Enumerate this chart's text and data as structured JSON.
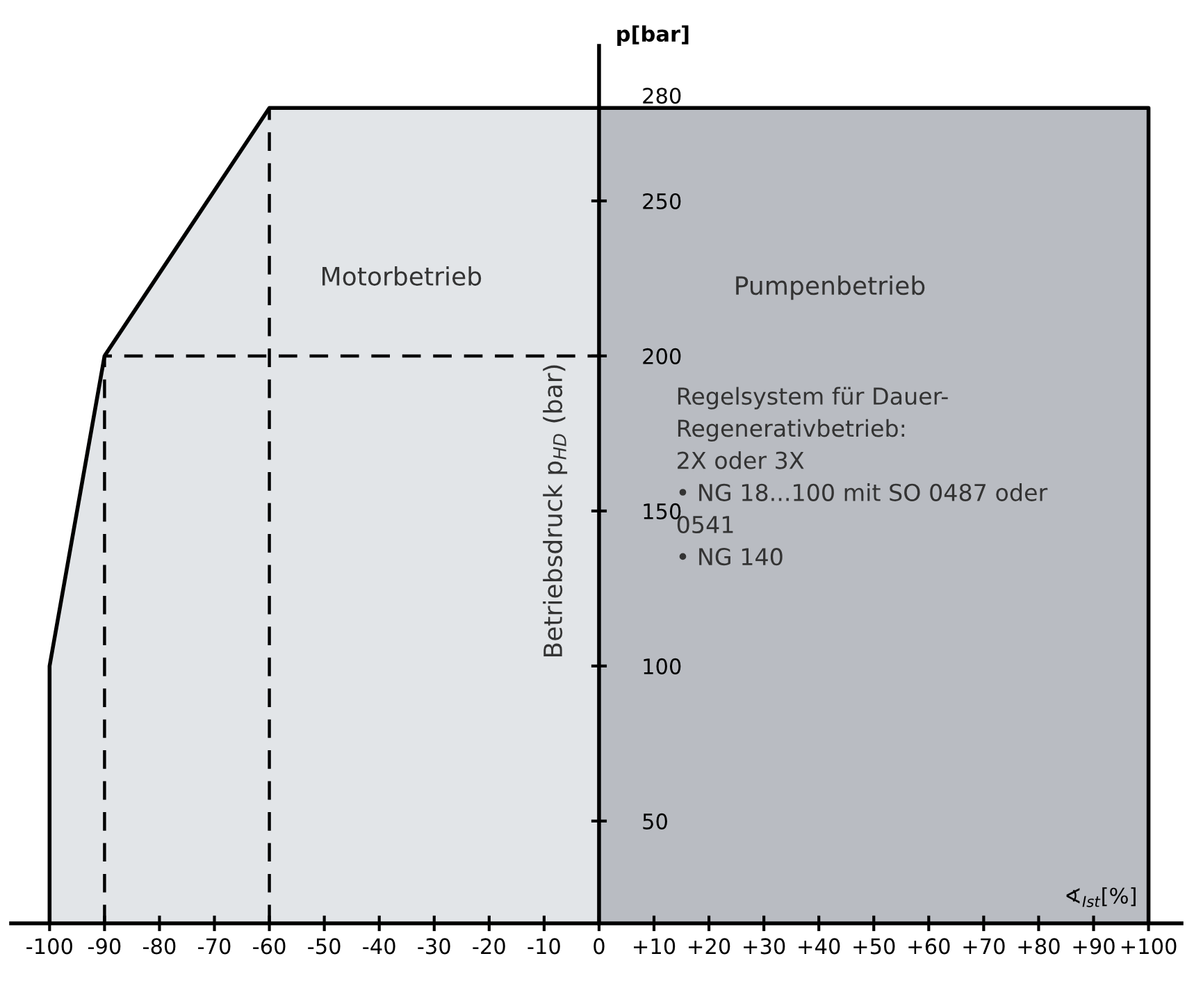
{
  "chart_data": {
    "type": "area",
    "ylabel": "p[bar]",
    "xlabel": "∢$_{Ist}$[%]",
    "series": [
      {
        "name": "Motorbetrieb",
        "color": "#e2e5e8",
        "x": [
          -100,
          -100,
          -90,
          -60,
          0
        ],
        "values": [
          17,
          100,
          200,
          280,
          280
        ]
      },
      {
        "name": "Pumpenbetrieb",
        "color": "#b9bcc2",
        "x": [
          0,
          100,
          100
        ],
        "values": [
          280,
          280,
          17
        ]
      },
      {
        "type": "line",
        "line_style": "dashed",
        "color": "#000000",
        "x": [
          -90,
          -90,
          0
        ],
        "values": [
          17,
          200,
          200
        ]
      },
      {
        "type": "line",
        "line_style": "dashed",
        "color": "#000000",
        "x": [
          -60,
          -60
        ],
        "values": [
          17,
          280
        ]
      }
    ],
    "xlim": [
      -107,
      106
    ],
    "ylim": [
      17,
      300
    ],
    "xticks": [
      {
        "value": -100,
        "label": "-100"
      },
      {
        "value": -90,
        "label": "-90"
      },
      {
        "value": -80,
        "label": "-80"
      },
      {
        "value": -70,
        "label": "-70"
      },
      {
        "value": -60,
        "label": "-60"
      },
      {
        "value": -50,
        "label": "-50"
      },
      {
        "value": -40,
        "label": "-40"
      },
      {
        "value": -30,
        "label": "-30"
      },
      {
        "value": -20,
        "label": "-20"
      },
      {
        "value": -10,
        "label": "-10"
      },
      0,
      {
        "value": 10,
        "label": "+10"
      },
      {
        "value": 20,
        "label": "+20"
      },
      {
        "value": 30,
        "label": "+30"
      },
      {
        "value": 40,
        "label": "+40"
      },
      {
        "value": 50,
        "label": "+50"
      },
      {
        "value": 60,
        "label": "+60"
      },
      {
        "value": 70,
        "label": "+70"
      },
      {
        "value": 80,
        "label": "+80"
      },
      {
        "value": 90,
        "label": "+90"
      },
      {
        "value": 100,
        "label": "+100"
      }
    ],
    "yticks": [
      50,
      100,
      150,
      200,
      250,
      280
    ],
    "annotations": [
      "Betriebsdruck p$_{HD}$ (bar)",
      "Regelsystem für Dauer-\nRegenerativbetrieb:\n2X oder 3X\n• NG 18...100 mit SO 0487 oder\n0541\n• NG 140"
    ],
    "grid": false,
    "legend": false
  }
}
